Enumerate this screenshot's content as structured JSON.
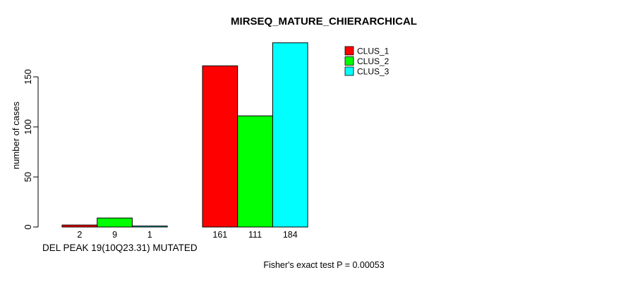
{
  "chart_data": {
    "type": "bar",
    "title": "MIRSEQ_MATURE_CHIERARCHICAL",
    "ylabel": "number of cases",
    "xlabel": "DEL PEAK 19(10Q23.31) MUTATED",
    "yticks": [
      0,
      50,
      100,
      150
    ],
    "ylim": [
      0,
      184
    ],
    "grid": false,
    "legend_position": "top-right",
    "groups": [
      "DEL PEAK 19(10Q23.31) MUTATED",
      ""
    ],
    "series": [
      {
        "name": "CLUS_1",
        "color": "#ff0000",
        "values": [
          2,
          161
        ]
      },
      {
        "name": "CLUS_2",
        "color": "#00ff00",
        "values": [
          9,
          111
        ]
      },
      {
        "name": "CLUS_3",
        "color": "#00ffff",
        "values": [
          1,
          184
        ]
      }
    ],
    "colors": {
      "axis": "#000000",
      "bar_border": "#000000",
      "background": "#ffffff"
    }
  },
  "footer": "Fisher's exact test P = 0.00053"
}
